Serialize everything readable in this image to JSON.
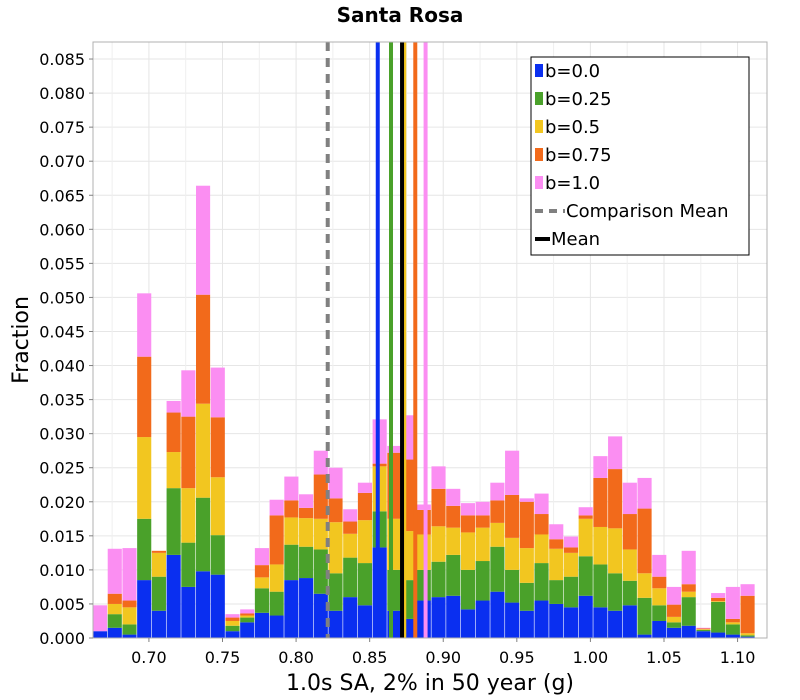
{
  "chart_data": {
    "type": "bar",
    "stacked": true,
    "title": "Santa Rosa",
    "xlabel": "1.0s SA, 2% in 50 year (g)",
    "ylabel": "Fraction",
    "xlim": [
      0.662,
      1.12
    ],
    "ylim": [
      0.0,
      0.0875
    ],
    "grid": true,
    "legend_position": "top-right",
    "bin_start": 0.662,
    "bin_width": 0.01,
    "x_ticks": [
      "0.70",
      "0.75",
      "0.80",
      "0.85",
      "0.90",
      "0.95",
      "1.00",
      "1.05",
      "1.10"
    ],
    "x_tick_values": [
      0.7,
      0.75,
      0.8,
      0.85,
      0.9,
      0.95,
      1.0,
      1.05,
      1.1
    ],
    "y_ticks": [
      "0.000",
      "0.005",
      "0.010",
      "0.015",
      "0.020",
      "0.025",
      "0.030",
      "0.035",
      "0.040",
      "0.045",
      "0.050",
      "0.055",
      "0.060",
      "0.065",
      "0.070",
      "0.075",
      "0.080",
      "0.085"
    ],
    "y_tick_values": [
      0.0,
      0.005,
      0.01,
      0.015,
      0.02,
      0.025,
      0.03,
      0.035,
      0.04,
      0.045,
      0.05,
      0.055,
      0.06,
      0.065,
      0.07,
      0.075,
      0.08,
      0.085
    ],
    "series": [
      {
        "name": "b=0.0",
        "color": "#0a2ff0",
        "values": [
          0.001,
          0.0015,
          0.0005,
          0.0085,
          0.004,
          0.0122,
          0.0075,
          0.0098,
          0.0093,
          0.001,
          0.0023,
          0.0037,
          0.0033,
          0.0085,
          0.0088,
          0.0065,
          0.004,
          0.006,
          0.0048,
          0.0133,
          0.004,
          0.0028,
          0.0055,
          0.006,
          0.0062,
          0.0042,
          0.0055,
          0.0068,
          0.0052,
          0.004,
          0.0055,
          0.005,
          0.0045,
          0.0062,
          0.0045,
          0.004,
          0.0048,
          0.0005,
          0.0025,
          0.0015,
          0.0018,
          0.001,
          0.0008,
          0.0005,
          0.0002
        ]
      },
      {
        "name": "b=0.25",
        "color": "#4aa12a",
        "values": [
          0.0,
          0.002,
          0.0015,
          0.009,
          0.005,
          0.0098,
          0.0065,
          0.0108,
          0.0058,
          0.0008,
          0.0007,
          0.0036,
          0.0035,
          0.0052,
          0.0046,
          0.0065,
          0.0055,
          0.0058,
          0.0062,
          0.0053,
          0.006,
          0.0057,
          0.0045,
          0.0052,
          0.006,
          0.0058,
          0.0058,
          0.0066,
          0.0048,
          0.0041,
          0.0055,
          0.0035,
          0.0045,
          0.0058,
          0.0063,
          0.0055,
          0.0036,
          0.0054,
          0.0023,
          0.0008,
          0.0042,
          0.0002,
          0.0045,
          0.0015,
          0.0002
        ]
      },
      {
        "name": "b=0.5",
        "color": "#f2c620",
        "values": [
          0.0,
          0.0015,
          0.0025,
          0.012,
          0.0035,
          0.0053,
          0.008,
          0.0138,
          0.0085,
          0.0007,
          0.0003,
          0.0016,
          0.004,
          0.004,
          0.0042,
          0.0045,
          0.0075,
          0.0035,
          0.0063,
          0.0066,
          0.0075,
          0.0072,
          0.0052,
          0.0052,
          0.004,
          0.0055,
          0.0049,
          0.0035,
          0.0047,
          0.0051,
          0.0042,
          0.0046,
          0.0035,
          0.0055,
          0.0055,
          0.0066,
          0.0046,
          0.0036,
          0.0025,
          0.0008,
          0.0008,
          0.0001,
          0.0001,
          0.0003,
          0.0003
        ]
      },
      {
        "name": "b=0.75",
        "color": "#f26a1b",
        "values": [
          0.0,
          0.0015,
          0.001,
          0.0118,
          0.0003,
          0.0058,
          0.0105,
          0.016,
          0.0088,
          0.0005,
          0.0003,
          0.0018,
          0.0072,
          0.0025,
          0.0015,
          0.0065,
          0.0035,
          0.0018,
          0.004,
          0.0004,
          0.0097,
          0.0105,
          0.0036,
          0.0055,
          0.0032,
          0.0025,
          0.0018,
          0.0033,
          0.0063,
          0.0068,
          0.003,
          0.0014,
          0.0008,
          0.0005,
          0.0072,
          0.0087,
          0.0052,
          0.0095,
          0.0017,
          0.0018,
          0.0011,
          0.0001,
          0.0005,
          0.0005,
          0.0055
        ]
      },
      {
        "name": "b=1.0",
        "color": "#fb8ef2",
        "values": [
          0.0038,
          0.0066,
          0.0077,
          0.0093,
          0.0,
          0.0017,
          0.0068,
          0.016,
          0.0073,
          0.0005,
          0.0006,
          0.0025,
          0.0023,
          0.0035,
          0.002,
          0.0035,
          0.0045,
          0.0018,
          0.0015,
          0.0065,
          0.001,
          0.0065,
          0.0008,
          0.0033,
          0.0025,
          0.0018,
          0.002,
          0.0026,
          0.0065,
          0.0005,
          0.003,
          0.0022,
          0.0016,
          0.0012,
          0.0032,
          0.0048,
          0.0046,
          0.0045,
          0.0032,
          0.0026,
          0.0049,
          0.0001,
          0.0007,
          0.0047,
          0.0017
        ]
      }
    ],
    "mean_lines": [
      {
        "name": "b=0.0",
        "x": 0.8555,
        "color": "#0a2ff0"
      },
      {
        "name": "b=0.25",
        "x": 0.8645,
        "color": "#4aa12a"
      },
      {
        "name": "b=0.5",
        "x": 0.8735,
        "color": "#f2c620"
      },
      {
        "name": "b=0.75",
        "x": 0.881,
        "color": "#f26a1b"
      },
      {
        "name": "b=1.0",
        "x": 0.888,
        "color": "#fb8ef2"
      }
    ],
    "comparison_mean": {
      "name": "Comparison Mean",
      "x": 0.8215,
      "color": "#808080"
    },
    "mean": {
      "name": "Mean",
      "x": 0.872,
      "color": "#000000"
    }
  }
}
